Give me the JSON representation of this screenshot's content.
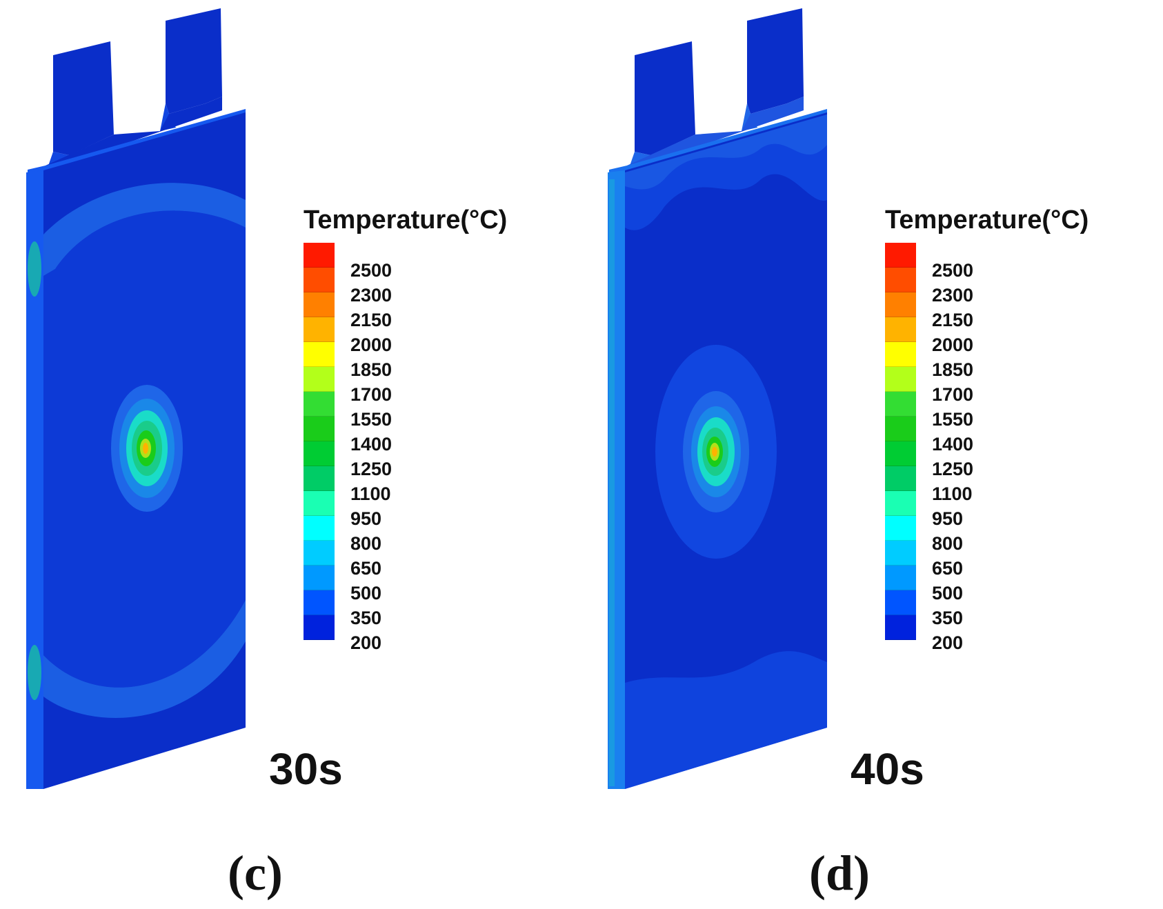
{
  "legend": {
    "title": "Temperature(°C)",
    "levels": [
      "2500",
      "2300",
      "2150",
      "2000",
      "1850",
      "1700",
      "1550",
      "1400",
      "1250",
      "1100",
      "950",
      "800",
      "650",
      "500",
      "350",
      "200"
    ],
    "colors": [
      "#ff1a00",
      "#ff4d00",
      "#ff8000",
      "#ffb300",
      "#ffff00",
      "#b3ff1a",
      "#33dd33",
      "#1acc1a",
      "#00cc33",
      "#00cc66",
      "#1affb3",
      "#00ffff",
      "#00ccff",
      "#0099ff",
      "#0055ff",
      "#0022dd"
    ]
  },
  "panels": [
    {
      "id": "c",
      "time": "30s",
      "caption": "(c)"
    },
    {
      "id": "d",
      "time": "40s",
      "caption": "(d)"
    }
  ],
  "colors": {
    "face": "#0a2ec9",
    "face_light": "#1146e0",
    "band": "#1f66e8",
    "edge": "#1659ef",
    "tab": "#0a2ec9"
  }
}
